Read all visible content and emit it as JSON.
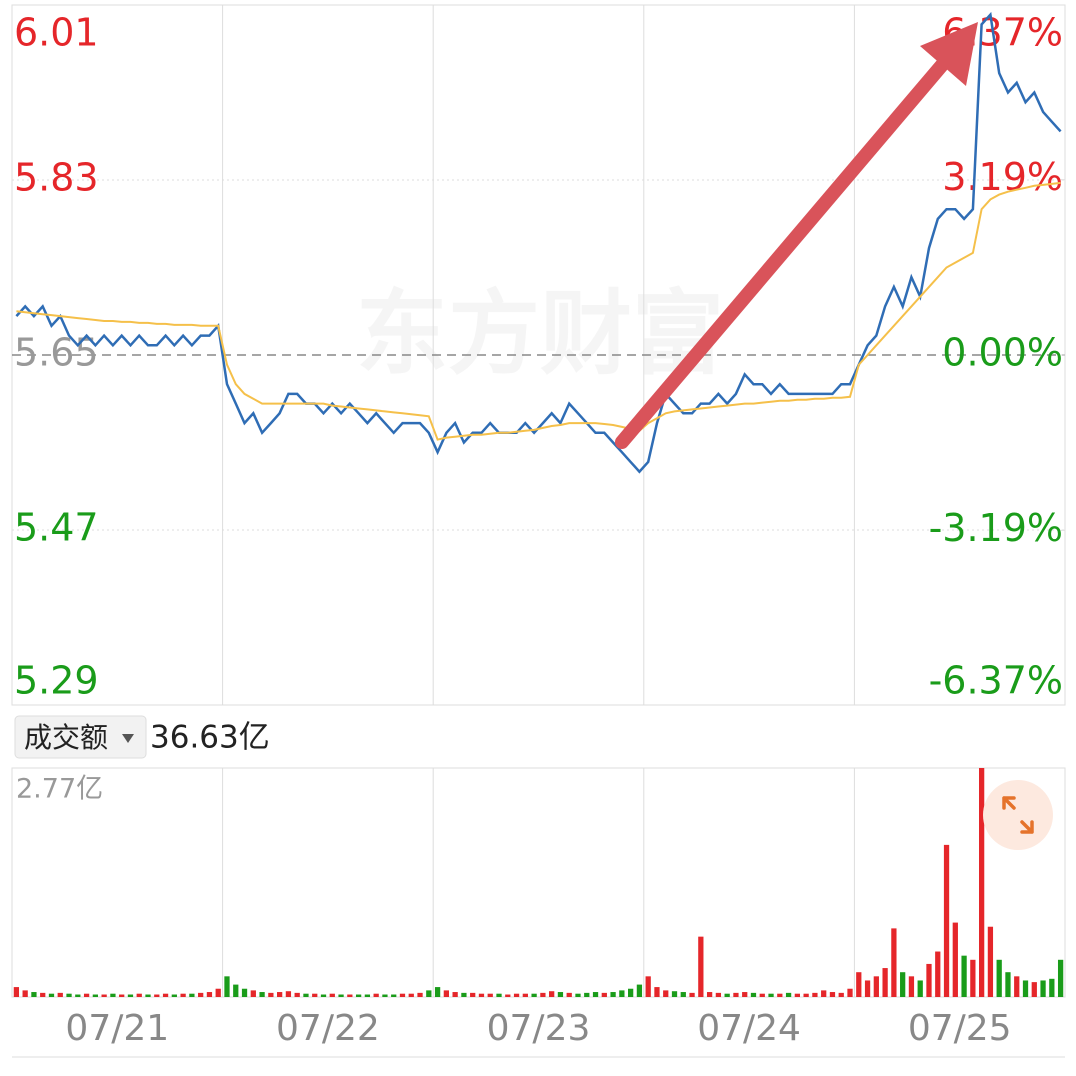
{
  "volume_header": {
    "selector": "成交额",
    "total": "36.63亿"
  },
  "watermark": "东方财富",
  "chart_data": [
    {
      "type": "line",
      "xlim": [
        0,
        120
      ],
      "xgrid": [
        24,
        48,
        72,
        96
      ],
      "ylim": [
        5.29,
        6.01
      ],
      "yticks": [
        6.01,
        5.83,
        5.65,
        5.47,
        5.29
      ],
      "y2lim": [
        -6.37,
        6.37
      ],
      "y2ticks": [
        {
          "value": 6.37,
          "label": "6.37%"
        },
        {
          "value": 3.19,
          "label": "3.19%"
        },
        {
          "value": 0,
          "label": "0.00%"
        },
        {
          "value": -3.19,
          "label": "-3.19%"
        },
        {
          "value": -6.37,
          "label": "-6.37%"
        }
      ],
      "up_color": "#e5262a",
      "down_color": "#1a9c1a",
      "flat_color": "#999999",
      "series": [
        {
          "color": "#2f6db5",
          "values": [
            5.69,
            5.7,
            5.69,
            5.7,
            5.68,
            5.69,
            5.67,
            5.66,
            5.67,
            5.66,
            5.67,
            5.66,
            5.67,
            5.66,
            5.67,
            5.66,
            5.66,
            5.67,
            5.66,
            5.67,
            5.66,
            5.67,
            5.67,
            5.68,
            5.62,
            5.6,
            5.58,
            5.59,
            5.57,
            5.58,
            5.59,
            5.61,
            5.61,
            5.6,
            5.6,
            5.59,
            5.6,
            5.59,
            5.6,
            5.59,
            5.58,
            5.59,
            5.58,
            5.57,
            5.58,
            5.58,
            5.58,
            5.57,
            5.55,
            5.57,
            5.58,
            5.56,
            5.57,
            5.57,
            5.58,
            5.57,
            5.57,
            5.57,
            5.58,
            5.57,
            5.58,
            5.59,
            5.58,
            5.6,
            5.59,
            5.58,
            5.57,
            5.57,
            5.56,
            5.55,
            5.54,
            5.53,
            5.54,
            5.58,
            5.61,
            5.6,
            5.59,
            5.59,
            5.6,
            5.6,
            5.61,
            5.6,
            5.61,
            5.63,
            5.62,
            5.62,
            5.61,
            5.62,
            5.61,
            5.61,
            5.61,
            5.61,
            5.61,
            5.61,
            5.62,
            5.62,
            5.64,
            5.66,
            5.67,
            5.7,
            5.72,
            5.7,
            5.73,
            5.71,
            5.76,
            5.79,
            5.8,
            5.8,
            5.79,
            5.8,
            5.99,
            6.0,
            5.94,
            5.92,
            5.93,
            5.91,
            5.92,
            5.9,
            5.89,
            5.88
          ]
        },
        {
          "color": "#f5c04a",
          "values": [
            5.695,
            5.694,
            5.693,
            5.692,
            5.691,
            5.69,
            5.689,
            5.688,
            5.687,
            5.686,
            5.685,
            5.685,
            5.684,
            5.684,
            5.683,
            5.683,
            5.682,
            5.682,
            5.681,
            5.681,
            5.681,
            5.68,
            5.68,
            5.68,
            5.64,
            5.62,
            5.61,
            5.605,
            5.6,
            5.6,
            5.6,
            5.6,
            5.6,
            5.6,
            5.6,
            5.6,
            5.598,
            5.597,
            5.596,
            5.595,
            5.594,
            5.593,
            5.592,
            5.591,
            5.59,
            5.589,
            5.588,
            5.587,
            5.563,
            5.565,
            5.566,
            5.567,
            5.568,
            5.568,
            5.569,
            5.57,
            5.57,
            5.571,
            5.572,
            5.573,
            5.575,
            5.577,
            5.578,
            5.58,
            5.58,
            5.58,
            5.58,
            5.579,
            5.578,
            5.576,
            5.574,
            5.572,
            5.58,
            5.585,
            5.59,
            5.592,
            5.593,
            5.594,
            5.595,
            5.596,
            5.597,
            5.598,
            5.599,
            5.6,
            5.6,
            5.601,
            5.602,
            5.603,
            5.603,
            5.604,
            5.604,
            5.605,
            5.605,
            5.606,
            5.606,
            5.607,
            5.64,
            5.65,
            5.66,
            5.67,
            5.68,
            5.69,
            5.7,
            5.71,
            5.72,
            5.73,
            5.74,
            5.745,
            5.75,
            5.755,
            5.8,
            5.81,
            5.815,
            5.818,
            5.82,
            5.822,
            5.824,
            5.825,
            5.826,
            5.827
          ]
        }
      ]
    },
    {
      "type": "bar",
      "xlim": [
        0,
        120
      ],
      "xgrid": [
        24,
        48,
        72,
        96
      ],
      "xticks": [
        {
          "value": 12,
          "label": "07/21"
        },
        {
          "value": 36,
          "label": "07/22"
        },
        {
          "value": 60,
          "label": "07/23"
        },
        {
          "value": 84,
          "label": "07/24"
        },
        {
          "value": 108,
          "label": "07/25"
        }
      ],
      "ylim": [
        0,
        2.77
      ],
      "yticks": [
        {
          "value": 2.77,
          "label": "2.77亿"
        }
      ],
      "values": [
        0.12,
        0.08,
        0.06,
        0.05,
        0.04,
        0.05,
        0.04,
        0.03,
        0.04,
        0.03,
        0.03,
        0.04,
        0.03,
        0.03,
        0.04,
        0.03,
        0.03,
        0.04,
        0.03,
        0.04,
        0.04,
        0.05,
        0.06,
        0.1,
        0.25,
        0.15,
        0.1,
        0.08,
        0.06,
        0.05,
        0.06,
        0.07,
        0.05,
        0.04,
        0.04,
        0.03,
        0.04,
        0.03,
        0.03,
        0.03,
        0.03,
        0.04,
        0.03,
        0.03,
        0.04,
        0.04,
        0.05,
        0.08,
        0.12,
        0.08,
        0.06,
        0.05,
        0.05,
        0.04,
        0.04,
        0.04,
        0.03,
        0.04,
        0.04,
        0.04,
        0.05,
        0.07,
        0.06,
        0.05,
        0.04,
        0.05,
        0.06,
        0.05,
        0.06,
        0.08,
        0.1,
        0.15,
        0.25,
        0.12,
        0.08,
        0.07,
        0.06,
        0.05,
        0.73,
        0.06,
        0.05,
        0.04,
        0.05,
        0.06,
        0.05,
        0.04,
        0.04,
        0.04,
        0.05,
        0.04,
        0.04,
        0.05,
        0.08,
        0.06,
        0.05,
        0.1,
        0.3,
        0.2,
        0.25,
        0.35,
        0.83,
        0.3,
        0.25,
        0.2,
        0.4,
        0.55,
        1.84,
        0.9,
        0.5,
        0.45,
        2.77,
        0.85,
        0.45,
        0.3,
        0.25,
        0.2,
        0.18,
        0.2,
        0.22,
        0.45
      ]
    }
  ]
}
